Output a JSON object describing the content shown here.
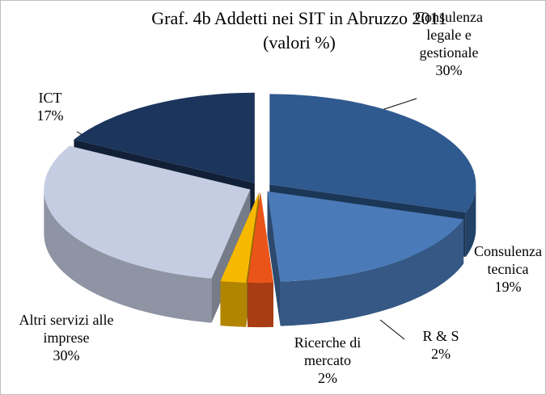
{
  "chart_data": {
    "type": "pie3d",
    "title": "Graf. 4b Addetti nei SIT in Abruzzo 2011",
    "subtitle": "(valori %)",
    "categories": [
      "Consulenza legale e gestionale",
      "Consulenza tecnica",
      "R & S",
      "Ricerche di mercato",
      "Altri servizi alle imprese",
      "ICT"
    ],
    "values": [
      30,
      19,
      2,
      2,
      30,
      17
    ],
    "value_labels": [
      "30%",
      "19%",
      "2%",
      "2%",
      "30%",
      "17%"
    ],
    "colors": [
      "#2f5a8f",
      "#4a7ab8",
      "#ea5419",
      "#f7b900",
      "#c5cde2",
      "#1c355c"
    ]
  }
}
